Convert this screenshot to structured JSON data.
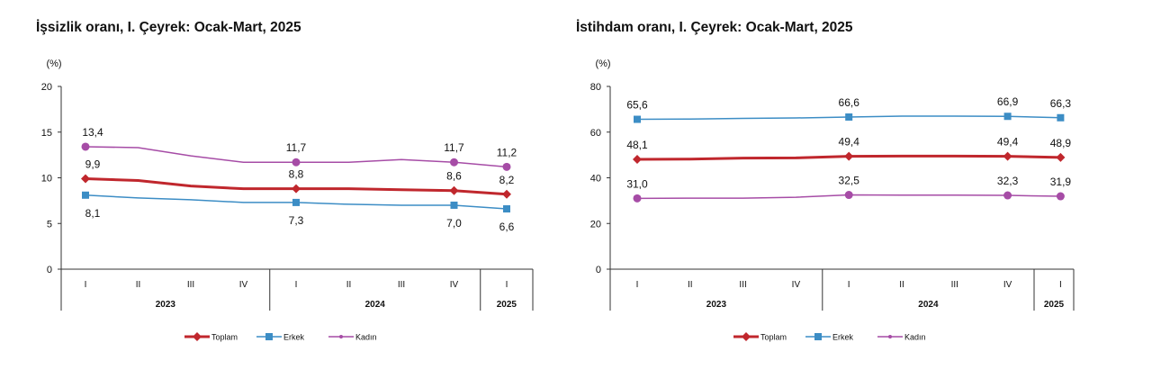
{
  "chart_data": [
    {
      "type": "line",
      "title": "İşsizlik oranı, I. Çeyrek: Ocak-Mart, 2025",
      "ylabel": "(%)",
      "ylim": [
        0,
        20
      ],
      "yticks": [
        "0",
        "5",
        "10",
        "15",
        "20"
      ],
      "categories": [
        "I",
        "II",
        "III",
        "IV",
        "I",
        "II",
        "III",
        "IV",
        "I"
      ],
      "years": [
        {
          "label": "2023",
          "span": 4
        },
        {
          "label": "2024",
          "span": 4
        },
        {
          "label": "2025",
          "span": 1
        }
      ],
      "legend_position": "bottom",
      "series": [
        {
          "name": "Toplam",
          "color": "#c0272d",
          "marker": "diamond",
          "values": [
            9.9,
            9.7,
            9.1,
            8.8,
            8.8,
            8.8,
            8.7,
            8.6,
            8.2
          ],
          "labels": [
            "9,9",
            "",
            "",
            "",
            "8,8",
            "",
            "",
            "8,6",
            "8,2"
          ],
          "label_pos": "above"
        },
        {
          "name": "Erkek",
          "color": "#3c8dc5",
          "marker": "square",
          "values": [
            8.1,
            7.8,
            7.6,
            7.3,
            7.3,
            7.1,
            7.0,
            7.0,
            6.6
          ],
          "labels": [
            "8,1",
            "",
            "",
            "",
            "7,3",
            "",
            "",
            "7,0",
            "6,6"
          ],
          "label_pos": "below"
        },
        {
          "name": "Kadın",
          "color": "#a64ca6",
          "marker": "circle",
          "values": [
            13.4,
            13.3,
            12.4,
            11.7,
            11.7,
            11.7,
            12.0,
            11.7,
            11.2
          ],
          "labels": [
            "13,4",
            "",
            "",
            "",
            "11,7",
            "",
            "",
            "11,7",
            "11,2"
          ],
          "label_pos": "above"
        }
      ]
    },
    {
      "type": "line",
      "title": "İstihdam oranı, I. Çeyrek: Ocak-Mart, 2025",
      "ylabel": "(%)",
      "ylim": [
        0,
        80
      ],
      "yticks": [
        "0",
        "20",
        "40",
        "60",
        "80"
      ],
      "categories": [
        "I",
        "II",
        "III",
        "IV",
        "I",
        "II",
        "III",
        "IV",
        "I"
      ],
      "years": [
        {
          "label": "2023",
          "span": 4
        },
        {
          "label": "2024",
          "span": 4
        },
        {
          "label": "2025",
          "span": 1
        }
      ],
      "legend_position": "bottom",
      "series": [
        {
          "name": "Toplam",
          "color": "#c0272d",
          "marker": "diamond",
          "values": [
            48.1,
            48.2,
            48.6,
            48.7,
            49.4,
            49.5,
            49.5,
            49.4,
            48.9
          ],
          "labels": [
            "48,1",
            "",
            "",
            "",
            "49,4",
            "",
            "",
            "49,4",
            "48,9"
          ],
          "label_pos": "above"
        },
        {
          "name": "Erkek",
          "color": "#3c8dc5",
          "marker": "square",
          "values": [
            65.6,
            65.7,
            66.0,
            66.2,
            66.6,
            67.0,
            67.0,
            66.9,
            66.3
          ],
          "labels": [
            "65,6",
            "",
            "",
            "",
            "66,6",
            "",
            "",
            "66,9",
            "66,3"
          ],
          "label_pos": "above"
        },
        {
          "name": "Kadın",
          "color": "#a64ca6",
          "marker": "circle",
          "values": [
            31.0,
            31.1,
            31.1,
            31.5,
            32.5,
            32.4,
            32.4,
            32.3,
            31.9
          ],
          "labels": [
            "31,0",
            "",
            "",
            "",
            "32,5",
            "",
            "",
            "32,3",
            "31,9"
          ],
          "label_pos": "above"
        }
      ]
    }
  ]
}
